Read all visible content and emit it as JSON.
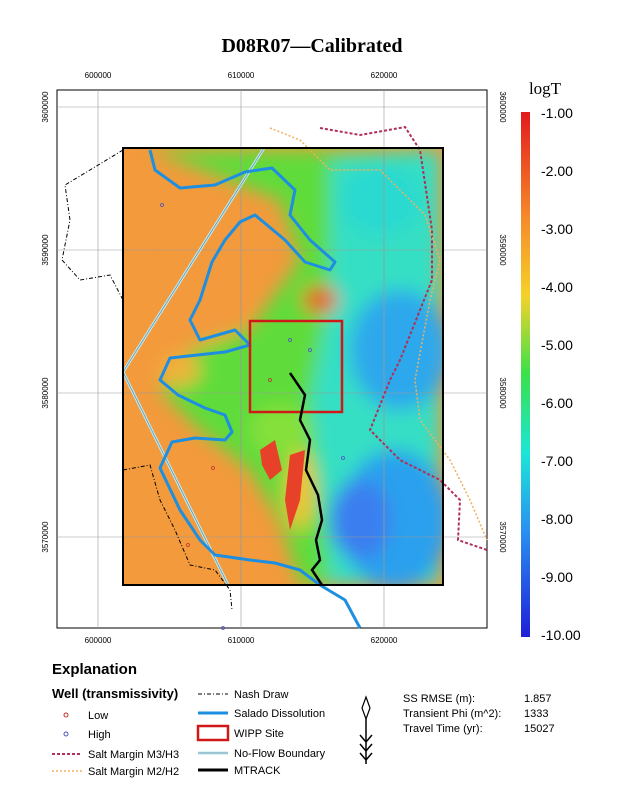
{
  "title": "D08R07—Calibrated",
  "map": {
    "x_ticks": [
      "600000",
      "610000",
      "620000"
    ],
    "y_ticks": [
      "3600000",
      "3590000",
      "3580000",
      "3570000"
    ]
  },
  "colorbar": {
    "title": "logT",
    "labels": [
      "-1.00",
      "-2.00",
      "-3.00",
      "-4.00",
      "-5.00",
      "-6.00",
      "-7.00",
      "-8.00",
      "-9.00",
      "-10.00"
    ]
  },
  "explanation": {
    "title": "Explanation",
    "well_title": "Well (transmissivity)",
    "legend": [
      "Low",
      "High",
      "Salt Margin M3/H3",
      "Salt Margin M2/H2",
      "Nash Draw",
      "Salado Dissolution",
      "WIPP Site",
      "No-Flow Boundary",
      "MTRACK"
    ],
    "stats": [
      {
        "label": "SS RMSE (m):",
        "value": "1.857"
      },
      {
        "label": "Transient Phi (m^2):",
        "value": "1333"
      },
      {
        "label": "Travel Time (yr):",
        "value": "15027"
      }
    ]
  }
}
